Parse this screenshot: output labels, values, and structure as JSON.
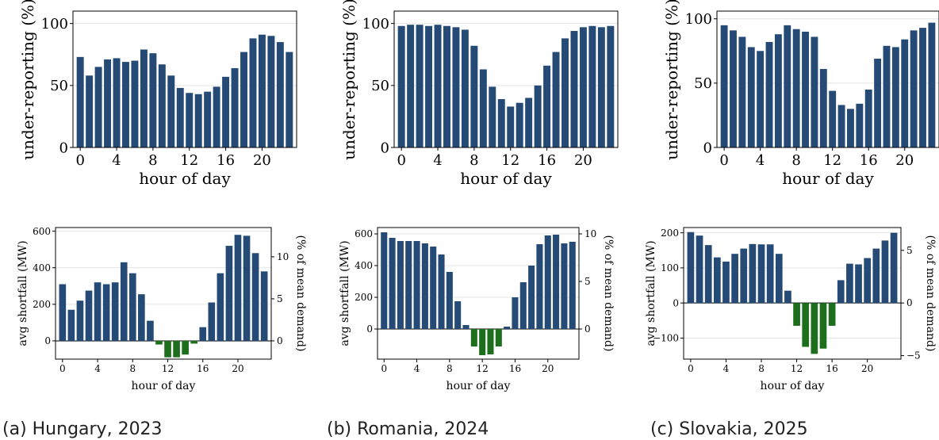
{
  "colors": {
    "bar": "#244a75",
    "negative": "#1d6e1d",
    "axis": "#000000",
    "grid": "#e4e4e4"
  },
  "panels": [
    {
      "caption": "(a) Hungary, 2023",
      "top_chart": {
        "type": "bar",
        "xlabel": "hour of day",
        "ylabel": "under-reporting (%)",
        "ylim": [
          0,
          110
        ],
        "yticks": [
          0,
          50,
          100
        ],
        "xticks": [
          0,
          4,
          8,
          12,
          16,
          20
        ],
        "x": [
          0,
          1,
          2,
          3,
          4,
          5,
          6,
          7,
          8,
          9,
          10,
          11,
          12,
          13,
          14,
          15,
          16,
          17,
          18,
          19,
          20,
          21,
          22,
          23
        ],
        "values": [
          73,
          58,
          65,
          71,
          72,
          69,
          70,
          79,
          76,
          67,
          58,
          48,
          44,
          43,
          45,
          49,
          57,
          64,
          77,
          88,
          91,
          90,
          85,
          77
        ]
      },
      "bottom_chart": {
        "type": "bar",
        "xlabel": "hour of day",
        "ylabel": "avg shortfall (MW)",
        "ylabel_right": "(% of mean demand)",
        "ylim": [
          -100,
          620
        ],
        "yticks": [
          0,
          200,
          400,
          600
        ],
        "right_ticks": [
          "0",
          "5",
          "10"
        ],
        "right_tick_values": [
          0,
          230,
          460
        ],
        "xticks": [
          0,
          4,
          8,
          12,
          16,
          20
        ],
        "x": [
          0,
          1,
          2,
          3,
          4,
          5,
          6,
          7,
          8,
          9,
          10,
          11,
          12,
          13,
          14,
          15,
          16,
          17,
          18,
          19,
          20,
          21,
          22,
          23
        ],
        "values": [
          310,
          170,
          220,
          275,
          320,
          310,
          320,
          430,
          370,
          255,
          110,
          -20,
          -90,
          -90,
          -75,
          -15,
          75,
          210,
          370,
          520,
          580,
          575,
          480,
          380
        ]
      }
    },
    {
      "caption": "(b) Romania, 2024",
      "top_chart": {
        "type": "bar",
        "xlabel": "hour of day",
        "ylabel": "under-reporting (%)",
        "ylim": [
          0,
          110
        ],
        "yticks": [
          0,
          50,
          100
        ],
        "xticks": [
          0,
          4,
          8,
          12,
          16,
          20
        ],
        "x": [
          0,
          1,
          2,
          3,
          4,
          5,
          6,
          7,
          8,
          9,
          10,
          11,
          12,
          13,
          14,
          15,
          16,
          17,
          18,
          19,
          20,
          21,
          22,
          23
        ],
        "values": [
          98,
          99,
          99,
          98,
          99,
          98,
          97,
          95,
          82,
          63,
          49,
          39,
          33,
          36,
          40,
          50,
          66,
          77,
          88,
          94,
          97,
          98,
          97,
          98
        ]
      },
      "bottom_chart": {
        "type": "bar",
        "xlabel": "hour of day",
        "ylabel": "avg shortfall (MW)",
        "ylabel_right": "(% of mean demand)",
        "ylim": [
          -190,
          640
        ],
        "yticks": [
          0,
          200,
          400,
          600
        ],
        "right_ticks": [
          "0",
          "5",
          "10"
        ],
        "right_tick_values": [
          0,
          300,
          600
        ],
        "xticks": [
          0,
          4,
          8,
          12,
          16,
          20
        ],
        "x": [
          0,
          1,
          2,
          3,
          4,
          5,
          6,
          7,
          8,
          9,
          10,
          11,
          12,
          13,
          14,
          15,
          16,
          17,
          18,
          19,
          20,
          21,
          22,
          23
        ],
        "values": [
          610,
          575,
          555,
          555,
          555,
          540,
          520,
          470,
          360,
          175,
          25,
          -110,
          -165,
          -160,
          -110,
          15,
          200,
          295,
          400,
          535,
          590,
          595,
          540,
          550
        ]
      }
    },
    {
      "caption": "(c) Slovakia, 2025",
      "top_chart": {
        "type": "bar",
        "xlabel": "hour of day",
        "ylabel": "under-reporting (%)",
        "ylim": [
          0,
          106
        ],
        "yticks": [
          0,
          50,
          100
        ],
        "xticks": [
          0,
          4,
          8,
          12,
          16,
          20
        ],
        "x": [
          0,
          1,
          2,
          3,
          4,
          5,
          6,
          7,
          8,
          9,
          10,
          11,
          12,
          13,
          14,
          15,
          16,
          17,
          18,
          19,
          20,
          21,
          22,
          23
        ],
        "values": [
          95,
          91,
          86,
          78,
          75,
          82,
          88,
          95,
          92,
          90,
          86,
          61,
          44,
          33,
          30,
          34,
          45,
          69,
          79,
          78,
          84,
          91,
          93,
          97
        ]
      },
      "bottom_chart": {
        "type": "bar",
        "xlabel": "hour of day",
        "ylabel": "avg shortfall (MW)",
        "ylabel_right": "(% of mean demand)",
        "ylim": [
          -160,
          215
        ],
        "yticks": [
          -100,
          0,
          100,
          200
        ],
        "right_ticks": [
          "−5",
          "0",
          "5"
        ],
        "right_tick_values": [
          -150,
          0,
          150
        ],
        "xticks": [
          0,
          4,
          8,
          12,
          16,
          20
        ],
        "x": [
          0,
          1,
          2,
          3,
          4,
          5,
          6,
          7,
          8,
          9,
          10,
          11,
          12,
          13,
          14,
          15,
          16,
          17,
          18,
          19,
          20,
          21,
          22,
          23
        ],
        "values": [
          202,
          192,
          165,
          130,
          118,
          140,
          155,
          168,
          167,
          167,
          140,
          35,
          -65,
          -125,
          -145,
          -130,
          -65,
          65,
          112,
          110,
          128,
          155,
          178,
          200
        ]
      }
    }
  ]
}
